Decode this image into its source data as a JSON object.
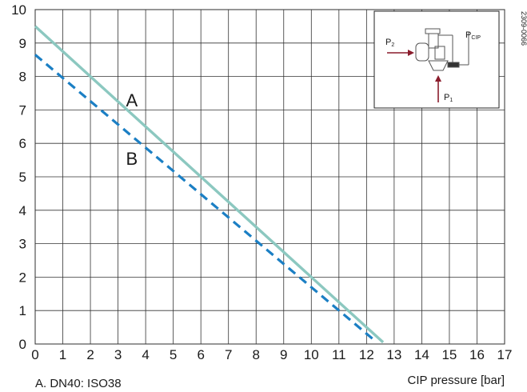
{
  "chart_data": {
    "type": "line",
    "xlabel": "CIP pressure [bar]",
    "ylabel": "",
    "xlim": [
      0,
      17
    ],
    "ylim": [
      0,
      10
    ],
    "x_ticks": [
      "0",
      "1",
      "2",
      "3",
      "4",
      "5",
      "6",
      "7",
      "8",
      "9",
      "10",
      "11",
      "12",
      "13",
      "14",
      "15",
      "16",
      "17"
    ],
    "y_ticks": [
      "0",
      "1",
      "2",
      "3",
      "4",
      "5",
      "6",
      "7",
      "8",
      "9",
      "10"
    ],
    "grid": true,
    "series": [
      {
        "name": "A",
        "style": "solid",
        "color": "#8cc8c0",
        "x": [
          0,
          12.6
        ],
        "y": [
          9.5,
          0.05
        ]
      },
      {
        "name": "B",
        "style": "dashed",
        "color": "#1b7fc4",
        "x": [
          0,
          12.3
        ],
        "y": [
          8.65,
          0.1
        ]
      }
    ],
    "series_labels": [
      {
        "text": "A",
        "x": 3.5,
        "y": 7.3
      },
      {
        "text": "B",
        "x": 3.5,
        "y": 5.55
      }
    ],
    "footnote": "A. DN40: ISO38",
    "doc_code": "2309-0066",
    "inset": {
      "p2": "P",
      "p2_sub": "2",
      "pcip": "P",
      "pcip_sub": "CIP",
      "p1": "P",
      "p1_sub": "1"
    }
  }
}
